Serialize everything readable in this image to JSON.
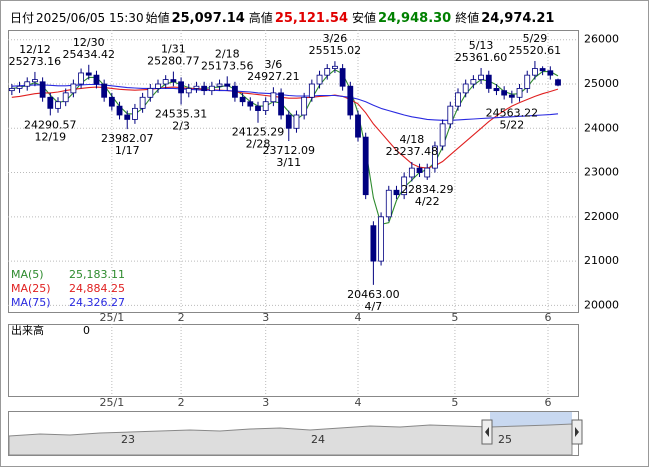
{
  "chart_data": {
    "type": "candlestick",
    "header": [
      {
        "label": "日付",
        "text": "2025/06/05 15:30"
      },
      {
        "label": "始値",
        "value": {
          "value": 25097.14,
          "label": "25,097.14"
        },
        "color": "#000000"
      },
      {
        "label": "高値",
        "value": {
          "value": 25121.54,
          "label": "25,121.54"
        },
        "color": "#e00000"
      },
      {
        "label": "安値",
        "value": {
          "value": 24948.3,
          "label": "24,948.30"
        },
        "color": "#008000"
      },
      {
        "label": "終値",
        "value": {
          "value": 24974.21,
          "label": "24,974.21"
        },
        "color": "#000000"
      }
    ],
    "candle_color": "#000080",
    "xlim": [
      -0.5,
      73.6
    ],
    "xticks": [
      {
        "value": 13,
        "label": "25/1"
      },
      {
        "value": 22,
        "label": "2"
      },
      {
        "value": 33,
        "label": "3"
      },
      {
        "value": 45,
        "label": "4"
      },
      {
        "value": 57.6,
        "label": "5"
      },
      {
        "value": 69.7,
        "label": "6"
      }
    ],
    "ylim": [
      19850,
      26220
    ],
    "yticks": [
      20000,
      21000,
      22000,
      23000,
      24000,
      25000,
      26000
    ],
    "grid": true,
    "candles": {
      "open": [
        24850,
        24900,
        24950,
        25050,
        25050,
        24700,
        24450,
        24600,
        24800,
        25000,
        25250,
        25200,
        25000,
        24700,
        24500,
        24300,
        24200,
        24450,
        24700,
        24900,
        25000,
        25100,
        25050,
        24800,
        24900,
        24950,
        24850,
        24950,
        25000,
        24950,
        24700,
        24600,
        24500,
        24400,
        24600,
        24800,
        24300,
        24000,
        24300,
        24700,
        25000,
        25200,
        25350,
        25350,
        24950,
        24300,
        23800,
        21800,
        21000,
        22000,
        22600,
        22500,
        22900,
        23100,
        22900,
        23100,
        23600,
        24100,
        24500,
        24800,
        25000,
        25100,
        25200,
        24900,
        24850,
        24750,
        24700,
        24900,
        25200,
        25350,
        25300,
        25097.14
      ],
      "high": [
        25000,
        25050,
        25150,
        25273.16,
        25150,
        24800,
        24700,
        24900,
        25100,
        25350,
        25434.42,
        25300,
        25100,
        24800,
        24600,
        24400,
        24550,
        24800,
        25000,
        25100,
        25200,
        25280.77,
        25150,
        25000,
        25050,
        25050,
        25050,
        25100,
        25173.56,
        25050,
        24800,
        24700,
        24600,
        24700,
        24927.21,
        24900,
        24400,
        24400,
        24800,
        25100,
        25300,
        25450,
        25515.02,
        25450,
        25050,
        24400,
        23900,
        21900,
        22100,
        22700,
        22700,
        23000,
        23237.48,
        23200,
        23200,
        23700,
        24200,
        24600,
        24900,
        25100,
        25200,
        25361.6,
        25300,
        25000,
        24950,
        24850,
        25000,
        25300,
        25520.61,
        25400,
        25400,
        25121.54
      ],
      "low": [
        24750,
        24800,
        24850,
        24950,
        24600,
        24290.57,
        24350,
        24500,
        24700,
        24900,
        25100,
        24900,
        24600,
        24400,
        24200,
        23982.07,
        24100,
        24350,
        24600,
        24800,
        24900,
        24950,
        24535.31,
        24700,
        24800,
        24750,
        24750,
        24850,
        24850,
        24600,
        24500,
        24400,
        24125.29,
        24300,
        24500,
        24200,
        23712.09,
        23900,
        24200,
        24600,
        24900,
        25100,
        25250,
        24850,
        24200,
        23700,
        22400,
        20463.0,
        20900,
        21900,
        22400,
        22400,
        22800,
        22900,
        22834.29,
        23000,
        23500,
        24000,
        24400,
        24700,
        24900,
        25000,
        24800,
        24750,
        24650,
        24563.22,
        24600,
        24800,
        25100,
        25200,
        25100,
        24948.3
      ],
      "close": [
        24900,
        24950,
        25050,
        25100,
        24700,
        24450,
        24600,
        24800,
        25000,
        25250,
        25200,
        25000,
        24700,
        24500,
        24300,
        24200,
        24450,
        24700,
        24900,
        25000,
        25100,
        25050,
        24800,
        24900,
        24950,
        24850,
        24950,
        25000,
        24950,
        24700,
        24600,
        24500,
        24400,
        24600,
        24800,
        24300,
        24000,
        24300,
        24700,
        25000,
        25200,
        25350,
        25400,
        24950,
        24300,
        23800,
        22500,
        21000,
        22000,
        22600,
        22500,
        22900,
        23100,
        23000,
        23100,
        23600,
        24100,
        24500,
        24800,
        25000,
        25100,
        25200,
        24900,
        24850,
        24750,
        24700,
        24900,
        25200,
        25350,
        25300,
        25200,
        24974.21
      ]
    },
    "series": [
      {
        "name": "MA(5)",
        "color": "#2e8b2e",
        "last": {
          "value": 25183.11,
          "label": "25,183.11"
        },
        "values": [
          24900,
          24920,
          24970,
          25030,
          24950,
          24750,
          24580,
          24620,
          24800,
          25020,
          25150,
          25150,
          24970,
          24730,
          24500,
          24330,
          24320,
          24450,
          24680,
          24870,
          25000,
          25050,
          24980,
          24920,
          24880,
          24900,
          24920,
          24930,
          24970,
          24880,
          24750,
          24600,
          24500,
          24500,
          24600,
          24570,
          24370,
          24200,
          24330,
          24670,
          24970,
          25180,
          25320,
          25230,
          24880,
          24350,
          23530,
          22430,
          21830,
          21870,
          22370,
          22670,
          22830,
          23000,
          23070,
          23230,
          23570,
          24070,
          24470,
          24770,
          24970,
          25100,
          25070,
          24980,
          24830,
          24770,
          24780,
          24930,
          25150,
          25280,
          25280,
          25183.11
        ]
      },
      {
        "name": "MA(25)",
        "color": "#e02020",
        "last": {
          "value": 24884.25,
          "label": "24,884.25"
        },
        "values": [
          24700,
          24720,
          24750,
          24780,
          24800,
          24800,
          24820,
          24850,
          24880,
          24900,
          24920,
          24930,
          24920,
          24900,
          24880,
          24870,
          24860,
          24870,
          24880,
          24900,
          24920,
          24930,
          24920,
          24900,
          24900,
          24880,
          24870,
          24860,
          24850,
          24830,
          24800,
          24780,
          24760,
          24740,
          24720,
          24700,
          24680,
          24680,
          24690,
          24700,
          24720,
          24730,
          24750,
          24720,
          24650,
          24550,
          24350,
          24100,
          23900,
          23700,
          23500,
          23350,
          23200,
          23120,
          23100,
          23150,
          23250,
          23400,
          23550,
          23700,
          23850,
          24000,
          24150,
          24280,
          24400,
          24500,
          24580,
          24650,
          24720,
          24780,
          24830,
          24884.25
        ]
      },
      {
        "name": "MA(75)",
        "color": "#2a2ae0",
        "last": {
          "value": 24326.27,
          "label": "24,326.27"
        },
        "values": [
          24950,
          24960,
          24970,
          24980,
          24980,
          24970,
          24960,
          24960,
          24970,
          24980,
          24990,
          24990,
          24980,
          24960,
          24940,
          24920,
          24910,
          24900,
          24900,
          24900,
          24900,
          24900,
          24890,
          24880,
          24870,
          24860,
          24860,
          24850,
          24850,
          24840,
          24830,
          24820,
          24800,
          24790,
          24780,
          24760,
          24740,
          24730,
          24730,
          24730,
          24740,
          24740,
          24740,
          24720,
          24700,
          24660,
          24600,
          24520,
          24450,
          24400,
          24350,
          24300,
          24260,
          24230,
          24200,
          24190,
          24180,
          24180,
          24190,
          24200,
          24210,
          24220,
          24230,
          24240,
          24250,
          24260,
          24270,
          24280,
          24290,
          24300,
          24310,
          24326.27
        ]
      }
    ],
    "annotations": [
      {
        "x": 3,
        "kind": "high",
        "date": "12/12",
        "value": 25273.16
      },
      {
        "x": 5,
        "kind": "low",
        "date": "12/19",
        "value": 24290.57
      },
      {
        "x": 10,
        "kind": "high",
        "date": "12/30",
        "value": 25434.42
      },
      {
        "x": 15,
        "kind": "low",
        "date": "1/17",
        "value": 23982.07
      },
      {
        "x": 21,
        "kind": "high",
        "date": "1/31",
        "value": 25280.77
      },
      {
        "x": 22,
        "kind": "low",
        "date": "2/3",
        "value": 24535.31
      },
      {
        "x": 28,
        "kind": "high",
        "date": "2/18",
        "value": 25173.56
      },
      {
        "x": 32,
        "kind": "low",
        "date": "2/28",
        "value": 24125.29
      },
      {
        "x": 34,
        "kind": "high",
        "date": "3/6",
        "value": 24927.21
      },
      {
        "x": 36,
        "kind": "low",
        "date": "3/11",
        "value": 23712.09
      },
      {
        "x": 42,
        "kind": "high",
        "date": "3/26",
        "value": 25515.02
      },
      {
        "x": 47,
        "kind": "low",
        "date": "4/7",
        "value": {
          "value": 20463.0,
          "label": "20463.00"
        }
      },
      {
        "x": 52,
        "kind": "high",
        "date": "4/18",
        "value": 23237.48
      },
      {
        "x": 54,
        "kind": "low",
        "date": "4/22",
        "value": 22834.29
      },
      {
        "x": 61,
        "kind": "high",
        "date": "5/13",
        "value": {
          "value": 25361.6,
          "label": "25361.60"
        }
      },
      {
        "x": 65,
        "kind": "low",
        "date": "5/22",
        "value": 24563.22
      },
      {
        "x": 68,
        "kind": "high",
        "date": "5/29",
        "value": 25520.61
      }
    ],
    "volume": {
      "label": "出来高",
      "value": 0
    },
    "navigator": {
      "labels": [
        "23",
        "24",
        "25"
      ]
    }
  }
}
